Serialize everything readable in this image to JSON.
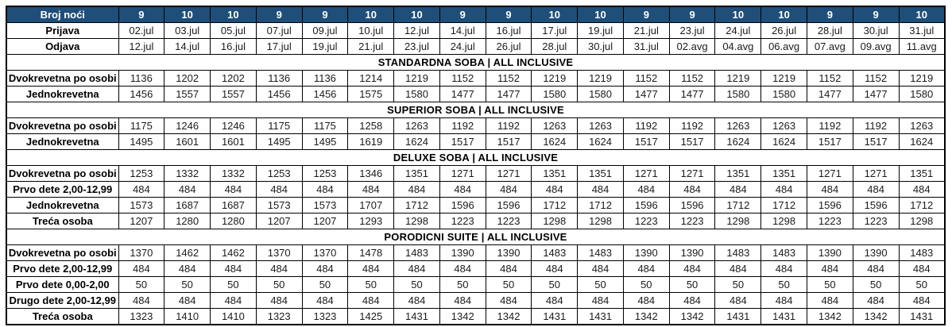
{
  "colors": {
    "header_bg": "#1F4E79",
    "header_text": "#FFFFFF",
    "border": "#000000",
    "cell_bg": "#FFFFFF",
    "cell_text": "#1B1B1B"
  },
  "table": {
    "nights_label": "Broj noći",
    "nights": [
      "9",
      "10",
      "10",
      "9",
      "9",
      "10",
      "10",
      "9",
      "9",
      "10",
      "10",
      "9",
      "9",
      "10",
      "10",
      "9",
      "9",
      "10"
    ],
    "checkin_label": "Prijava",
    "checkin": [
      "02.jul",
      "03.jul",
      "05.jul",
      "07.jul",
      "09.jul",
      "10.jul",
      "12.jul",
      "14.jul",
      "16.jul",
      "17.jul",
      "19.jul",
      "21.jul",
      "23.jul",
      "24.jul",
      "26.jul",
      "28.jul",
      "30.jul",
      "31.jul"
    ],
    "checkout_label": "Odjava",
    "checkout": [
      "12.jul",
      "14.jul",
      "16.jul",
      "17.jul",
      "19.jul",
      "21.jul",
      "23.jul",
      "24.jul",
      "26.jul",
      "28.jul",
      "30.jul",
      "31.jul",
      "02.avg",
      "04.avg",
      "06.avg",
      "07.avg",
      "09.avg",
      "11.avg"
    ],
    "sections": [
      {
        "title": "STANDARDNA SOBA | ALL INCLUSIVE",
        "rows": [
          {
            "label": "Dvokrevetna po osobi",
            "values": [
              1136,
              1202,
              1202,
              1136,
              1136,
              1214,
              1219,
              1152,
              1152,
              1219,
              1219,
              1152,
              1152,
              1219,
              1219,
              1152,
              1152,
              1219
            ]
          },
          {
            "label": "Jednokrevetna",
            "values": [
              1456,
              1557,
              1557,
              1456,
              1456,
              1575,
              1580,
              1477,
              1477,
              1580,
              1580,
              1477,
              1477,
              1580,
              1580,
              1477,
              1477,
              1580
            ]
          }
        ]
      },
      {
        "title": "SUPERIOR SOBA | ALL INCLUSIVE",
        "rows": [
          {
            "label": "Dvokrevetna po osobi",
            "values": [
              1175,
              1246,
              1246,
              1175,
              1175,
              1258,
              1263,
              1192,
              1192,
              1263,
              1263,
              1192,
              1192,
              1263,
              1263,
              1192,
              1192,
              1263
            ]
          },
          {
            "label": "Jednokrevetna",
            "values": [
              1495,
              1601,
              1601,
              1495,
              1495,
              1619,
              1624,
              1517,
              1517,
              1624,
              1624,
              1517,
              1517,
              1624,
              1624,
              1517,
              1517,
              1624
            ]
          }
        ]
      },
      {
        "title": "DELUXE SOBA | ALL INCLUSIVE",
        "rows": [
          {
            "label": "Dvokrevetna po osobi",
            "values": [
              1253,
              1332,
              1332,
              1253,
              1253,
              1346,
              1351,
              1271,
              1271,
              1351,
              1351,
              1271,
              1271,
              1351,
              1351,
              1271,
              1271,
              1351
            ]
          },
          {
            "label": "Prvo dete 2,00-12,99",
            "values": [
              484,
              484,
              484,
              484,
              484,
              484,
              484,
              484,
              484,
              484,
              484,
              484,
              484,
              484,
              484,
              484,
              484,
              484
            ]
          },
          {
            "label": "Jednokrevetna",
            "values": [
              1573,
              1687,
              1687,
              1573,
              1573,
              1707,
              1712,
              1596,
              1596,
              1712,
              1712,
              1596,
              1596,
              1712,
              1712,
              1596,
              1596,
              1712
            ]
          },
          {
            "label": "Treća osoba",
            "values": [
              1207,
              1280,
              1280,
              1207,
              1207,
              1293,
              1298,
              1223,
              1223,
              1298,
              1298,
              1223,
              1223,
              1298,
              1298,
              1223,
              1223,
              1298
            ]
          }
        ]
      },
      {
        "title": "PORODICNI SUITE | ALL INCLUSIVE",
        "rows": [
          {
            "label": "Dvokrevetna po osobi",
            "values": [
              1370,
              1462,
              1462,
              1370,
              1370,
              1478,
              1483,
              1390,
              1390,
              1483,
              1483,
              1390,
              1390,
              1483,
              1483,
              1390,
              1390,
              1483
            ]
          },
          {
            "label": "Prvo dete 2,00-12,99",
            "values": [
              484,
              484,
              484,
              484,
              484,
              484,
              484,
              484,
              484,
              484,
              484,
              484,
              484,
              484,
              484,
              484,
              484,
              484
            ]
          },
          {
            "label": "Prvo dete 0,00-2,00",
            "values": [
              50,
              50,
              50,
              50,
              50,
              50,
              50,
              50,
              50,
              50,
              50,
              50,
              50,
              50,
              50,
              50,
              50,
              50
            ]
          },
          {
            "label": "Drugo dete 2,00-12,99",
            "values": [
              484,
              484,
              484,
              484,
              484,
              484,
              484,
              484,
              484,
              484,
              484,
              484,
              484,
              484,
              484,
              484,
              484,
              484
            ]
          },
          {
            "label": "Treća osoba",
            "values": [
              1323,
              1410,
              1410,
              1323,
              1323,
              1425,
              1431,
              1342,
              1342,
              1431,
              1431,
              1342,
              1342,
              1431,
              1431,
              1342,
              1342,
              1431
            ]
          }
        ]
      }
    ]
  }
}
